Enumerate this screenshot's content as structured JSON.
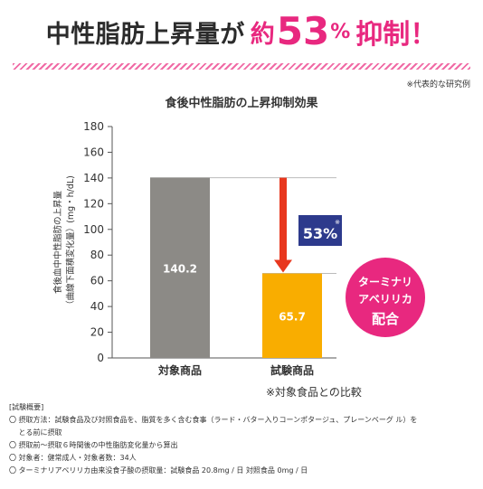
{
  "headline": {
    "part1": "中性脂肪上昇量が",
    "part2": "約",
    "number": "53",
    "percent": "%",
    "part3": "抑制！"
  },
  "note_top": "※代表的な研究例",
  "colors": {
    "pink": "#e8287f",
    "gray_bar": "#8c8a86",
    "orange_bar": "#f9ad00",
    "arrow": "#e8371e",
    "badge": "#2d3a8c"
  },
  "chart_data": {
    "type": "bar",
    "title": "食後中性脂肪の上昇抑制効果",
    "ylabel_line1": "食後血中中性脂肪の上昇量",
    "ylabel_line2": "（曲線下面積変化量）(mg・h/dL)",
    "categories": [
      "対象商品",
      "試験商品"
    ],
    "values": [
      140.2,
      65.7
    ],
    "value_labels": [
      "140.2",
      "65.7"
    ],
    "bar_colors": [
      "#8c8a86",
      "#f9ad00"
    ],
    "ylim": [
      0,
      180
    ],
    "yticks": [
      0,
      20,
      40,
      60,
      80,
      100,
      120,
      140,
      160,
      180
    ],
    "grid": false,
    "reduction_label": "53%",
    "reduction_mark": "※",
    "callout": {
      "line1": "ターミナリ",
      "line2": "アベリリカ",
      "line3": "配合"
    }
  },
  "comparison_note": "※対象食品との比較",
  "summary": {
    "title": "[試験概要]",
    "items": [
      "〇 摂取方法：試験食品及び対照食品を、脂質を多く含む食事（ラード・バター入りコーンポタージュ、プレーンベーグ ル）を",
      "　 とる前に摂取",
      "〇 摂取前～摂取６時間後の中性脂肪変化量から算出",
      "〇 対象者：健常成人・対象者数：34人",
      "〇 ターミナリアベリリカ由来没食子酸の摂取量：試験食品 20.8mg / 日 対照食品 0mg / 日"
    ]
  }
}
